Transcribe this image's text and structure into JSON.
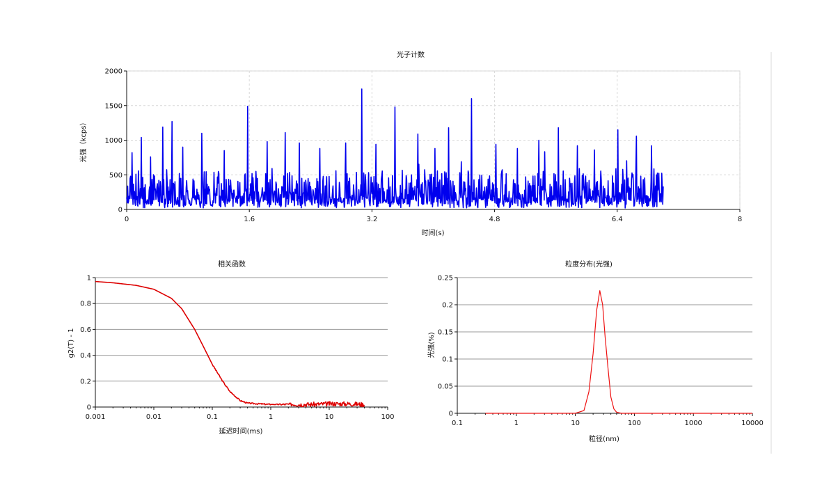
{
  "chart_data": [
    {
      "id": "photon-count",
      "type": "line",
      "title": "光子计数",
      "xlabel": "时间(s)",
      "ylabel": "光强（kcps）",
      "xlim": [
        0,
        8
      ],
      "ylim": [
        0,
        2000
      ],
      "xticks": [
        "0",
        "1.6",
        "3.2",
        "4.8",
        "6.4",
        "8"
      ],
      "yticks": [
        "0",
        "500",
        "1000",
        "1500",
        "2000"
      ],
      "grid": "dashed",
      "series": [
        {
          "color": "#0000ee",
          "x_range": [
            0,
            7.0
          ],
          "baseline": 150,
          "noise_max": 450,
          "spikes": [
            [
              0.07,
              820
            ],
            [
              0.19,
              1040
            ],
            [
              0.31,
              760
            ],
            [
              0.47,
              1190
            ],
            [
              0.59,
              1270
            ],
            [
              0.73,
              900
            ],
            [
              0.98,
              1100
            ],
            [
              1.27,
              850
            ],
            [
              1.58,
              1490
            ],
            [
              1.83,
              980
            ],
            [
              2.07,
              1110
            ],
            [
              2.25,
              960
            ],
            [
              2.52,
              880
            ],
            [
              2.86,
              960
            ],
            [
              3.07,
              1740
            ],
            [
              3.25,
              940
            ],
            [
              3.5,
              1480
            ],
            [
              3.8,
              1090
            ],
            [
              4.02,
              880
            ],
            [
              4.2,
              1180
            ],
            [
              4.5,
              1600
            ],
            [
              4.82,
              940
            ],
            [
              5.1,
              880
            ],
            [
              5.38,
              1000
            ],
            [
              5.63,
              1180
            ],
            [
              5.88,
              920
            ],
            [
              6.1,
              860
            ],
            [
              6.41,
              1150
            ],
            [
              6.65,
              1060
            ],
            [
              6.85,
              920
            ]
          ]
        }
      ]
    },
    {
      "id": "correlation",
      "type": "line",
      "title": "相关函数",
      "xlabel": "延迟时间(ms)",
      "ylabel": "g2(T) - 1",
      "xscale": "log",
      "xlim": [
        0.001,
        100
      ],
      "ylim": [
        0,
        1
      ],
      "xticks": [
        "0.001",
        "0.01",
        "0.1",
        "1",
        "10",
        "100"
      ],
      "yticks": [
        "0",
        "0.2",
        "0.4",
        "0.6",
        "0.8",
        "1"
      ],
      "series": [
        {
          "color": "#dd0000",
          "x": [
            0.001,
            0.002,
            0.005,
            0.01,
            0.02,
            0.03,
            0.05,
            0.07,
            0.1,
            0.15,
            0.2,
            0.3,
            0.4,
            0.6,
            1,
            2,
            5,
            10,
            20,
            40
          ],
          "y": [
            0.97,
            0.96,
            0.94,
            0.91,
            0.84,
            0.76,
            0.6,
            0.47,
            0.33,
            0.2,
            0.12,
            0.05,
            0.03,
            0.025,
            0.02,
            0.02,
            0.02,
            0.025,
            0.025,
            0.02
          ]
        }
      ]
    },
    {
      "id": "size-distribution",
      "type": "line",
      "title": "粒度分布(光强)",
      "xlabel": "粒径(nm)",
      "ylabel": "光强(%)",
      "xscale": "log",
      "xlim": [
        0.1,
        10000
      ],
      "ylim": [
        0,
        0.25
      ],
      "xticks": [
        "0.1",
        "1",
        "10",
        "100",
        "1000",
        "10000"
      ],
      "yticks": [
        "0",
        "0.05",
        "0.1",
        "0.15",
        "0.2",
        "0.25"
      ],
      "series": [
        {
          "color": "#ee1111",
          "x": [
            0.3,
            10,
            14,
            17,
            20,
            23,
            26,
            29,
            32,
            36,
            40,
            45,
            50,
            60,
            10000
          ],
          "y": [
            0,
            0,
            0.005,
            0.04,
            0.11,
            0.19,
            0.226,
            0.2,
            0.14,
            0.08,
            0.03,
            0.008,
            0.002,
            0,
            0
          ]
        }
      ]
    }
  ]
}
